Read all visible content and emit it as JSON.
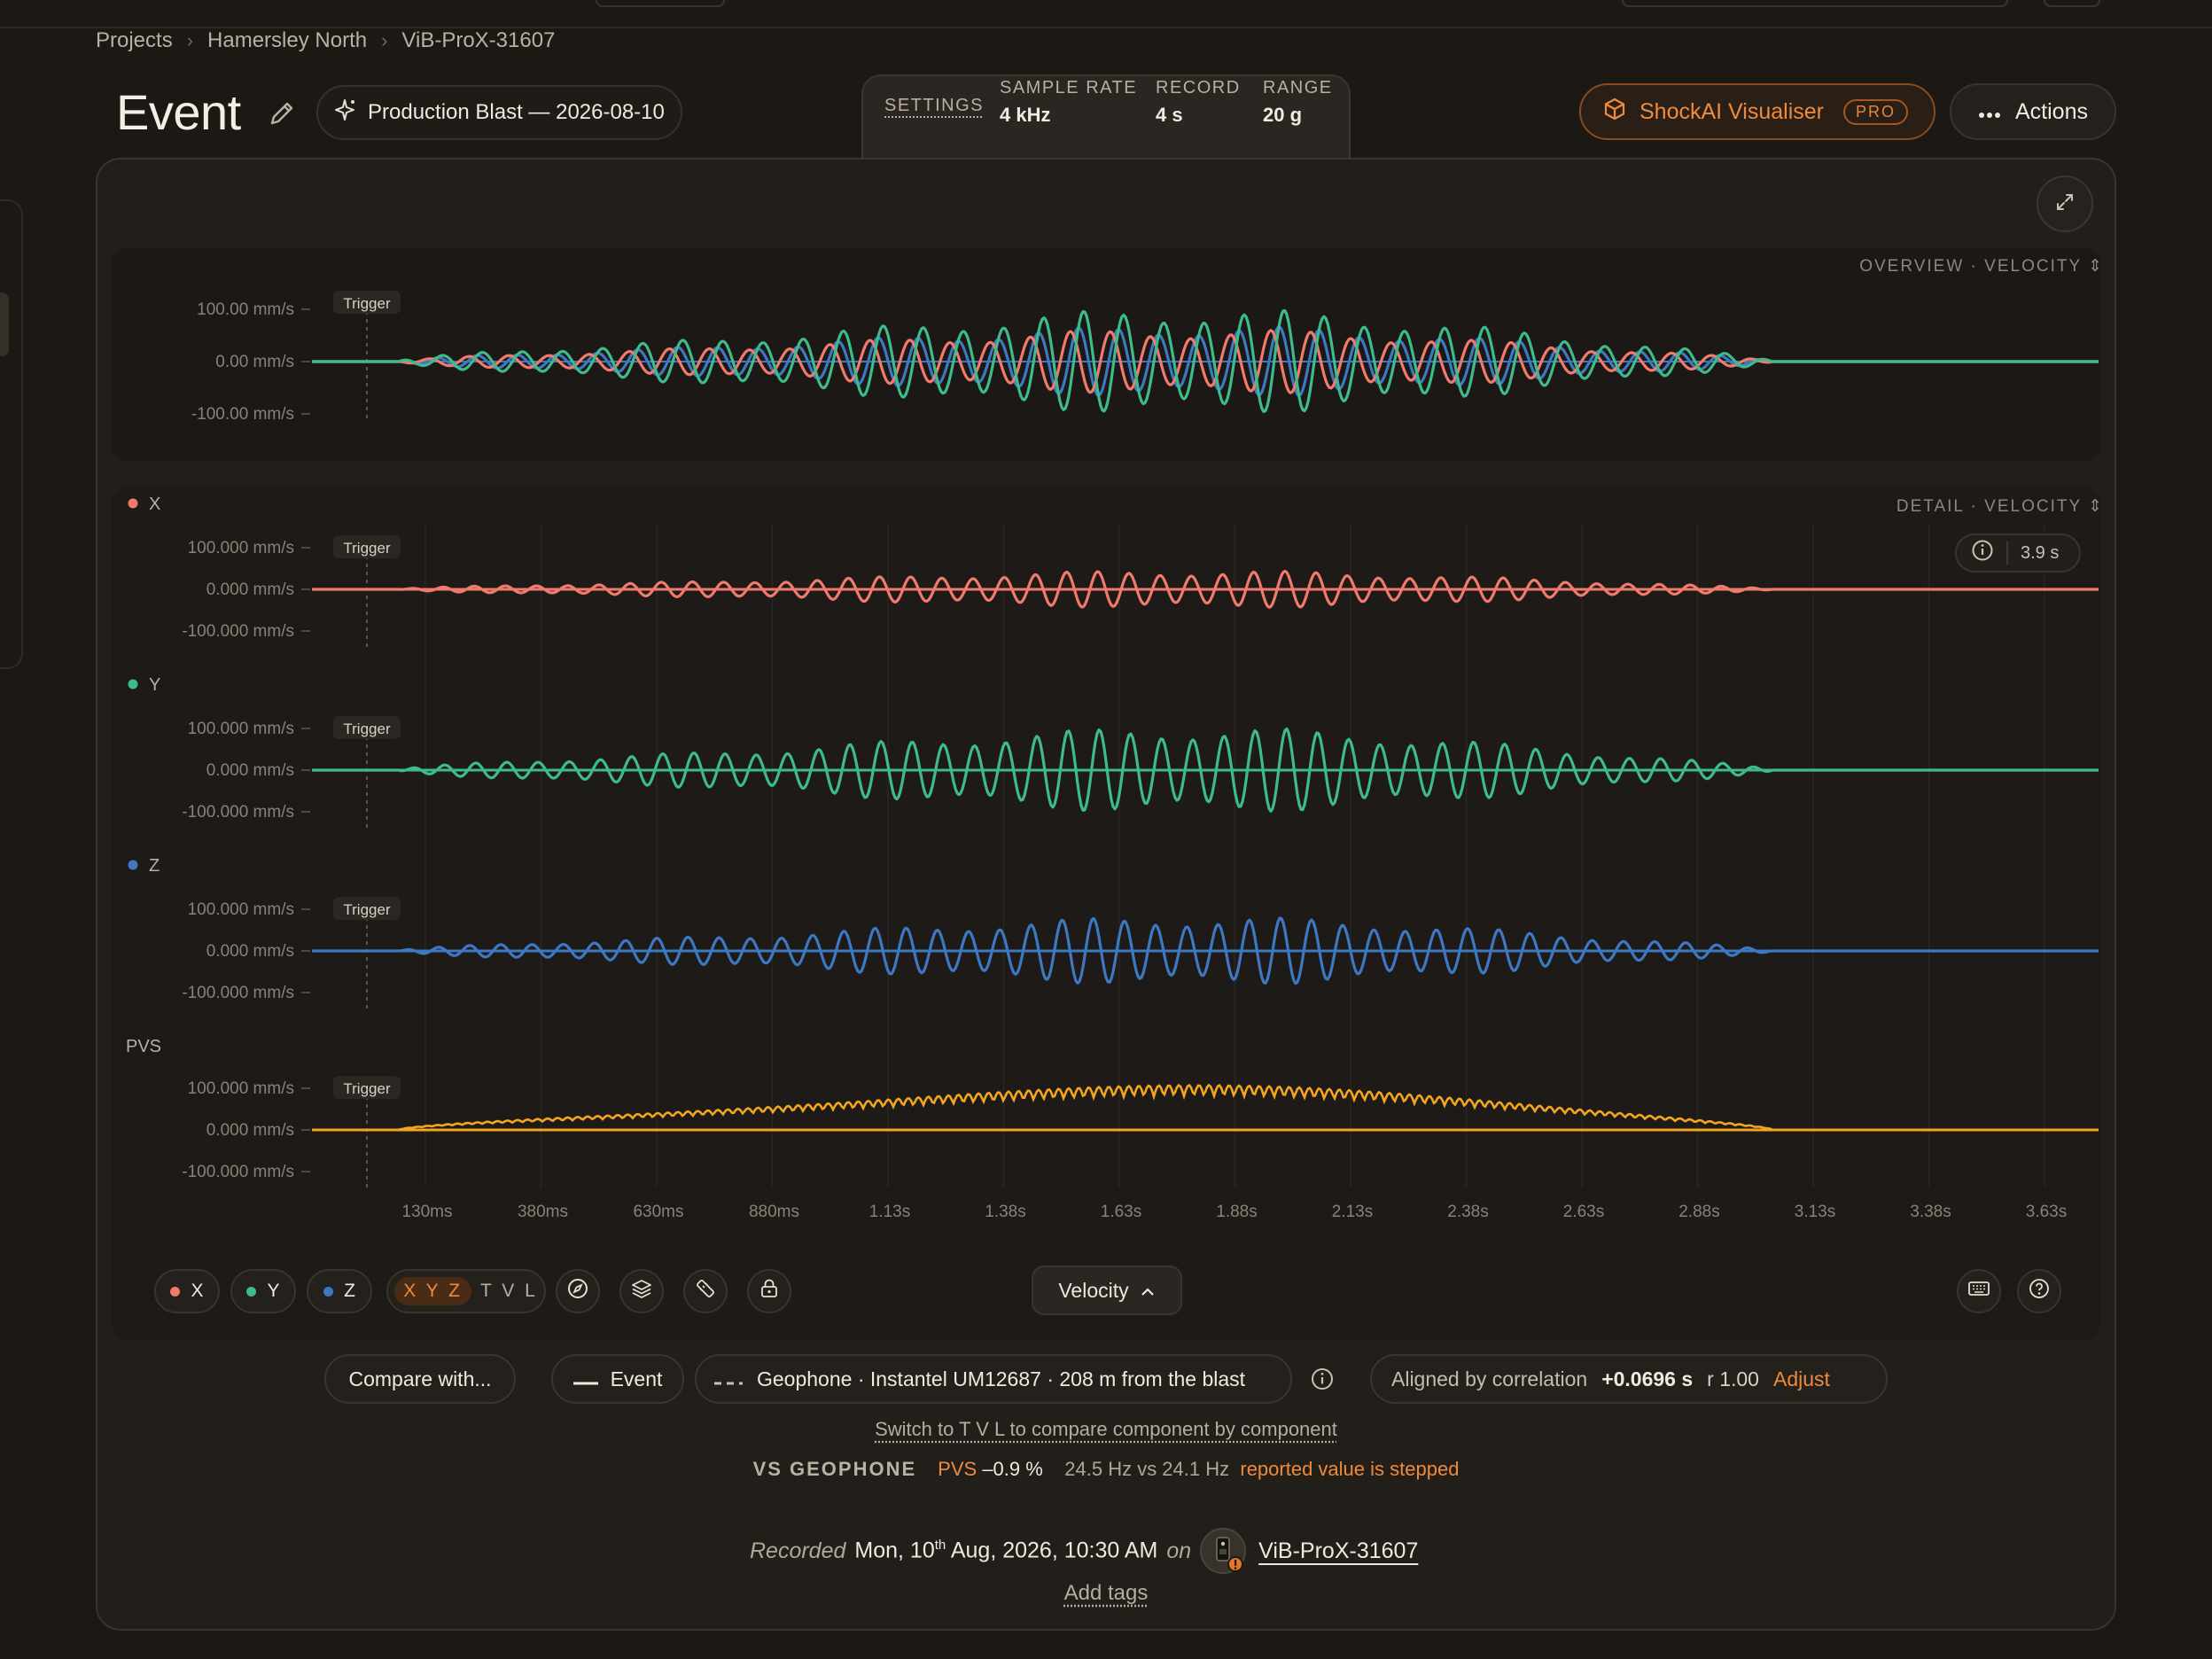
{
  "breadcrumb": [
    "Projects",
    "Hamersley North",
    "ViB-ProX-31607"
  ],
  "header": {
    "title": "Event",
    "blast_chip": "Production Blast — 2026-08-10"
  },
  "settings": {
    "link": "SETTINGS",
    "items": [
      {
        "label": "SAMPLE RATE",
        "value": "4 kHz"
      },
      {
        "label": "RECORD",
        "value": "4 s"
      },
      {
        "label": "RANGE",
        "value": "20 g"
      }
    ]
  },
  "actions": {
    "shockai_label": "ShockAI Visualiser",
    "pro_badge": "PRO",
    "actions_label": "Actions"
  },
  "overview": {
    "tag": "OVERVIEW · VELOCITY",
    "yticks": [
      "100.00 mm/s",
      "0.00 mm/s",
      "-100.00 mm/s"
    ],
    "trigger": "Trigger"
  },
  "detail": {
    "tag": "DETAIL · VELOCITY",
    "window": "3.9 s",
    "trigger": "Trigger",
    "yticks": [
      "100.000 mm/s",
      "0.000 mm/s",
      "-100.000 mm/s"
    ],
    "channels": [
      {
        "name": "X",
        "color": "#f07a6c"
      },
      {
        "name": "Y",
        "color": "#3dbb8c"
      },
      {
        "name": "Z",
        "color": "#3d78c2"
      },
      {
        "name": "PVS",
        "color": "#f3a51f"
      }
    ],
    "xticks": [
      "130ms",
      "380ms",
      "630ms",
      "880ms",
      "1.13s",
      "1.38s",
      "1.63s",
      "1.88s",
      "2.13s",
      "2.38s",
      "2.63s",
      "2.88s",
      "3.13s",
      "3.38s",
      "3.63s"
    ]
  },
  "toolbar": {
    "x": "X",
    "y": "Y",
    "z": "Z",
    "xyz": "X Y Z",
    "tvl": "T V L",
    "unit": "Velocity"
  },
  "compare": {
    "button": "Compare with...",
    "event_legend": "Event",
    "geophone_legend": "Geophone · Instantel UM12687 · 208 m from the blast",
    "aligned_label": "Aligned by correlation",
    "offset": "+0.0696 s",
    "r": "r 1.00",
    "adjust": "Adjust",
    "switch_hint": "Switch to T V L to compare component by component"
  },
  "vs": {
    "label": "VS GEOPHONE",
    "pvs": "PVS",
    "pvs_delta": "–0.9 %",
    "freq": "24.5 Hz vs 24.1 Hz",
    "note": "reported value is stepped"
  },
  "recorded": {
    "prefix": "Recorded",
    "day": "Mon, 10",
    "sup": "th",
    "rest": " Aug, 2026, 10:30 AM",
    "on": "on",
    "device": "ViB-ProX-31607"
  },
  "tags": {
    "add": "Add tags"
  },
  "colors": {
    "accent": "#ef8a3c",
    "x": "#f07a6c",
    "y": "#3dbb8c",
    "z": "#3d78c2",
    "pvs": "#f3a51f"
  }
}
